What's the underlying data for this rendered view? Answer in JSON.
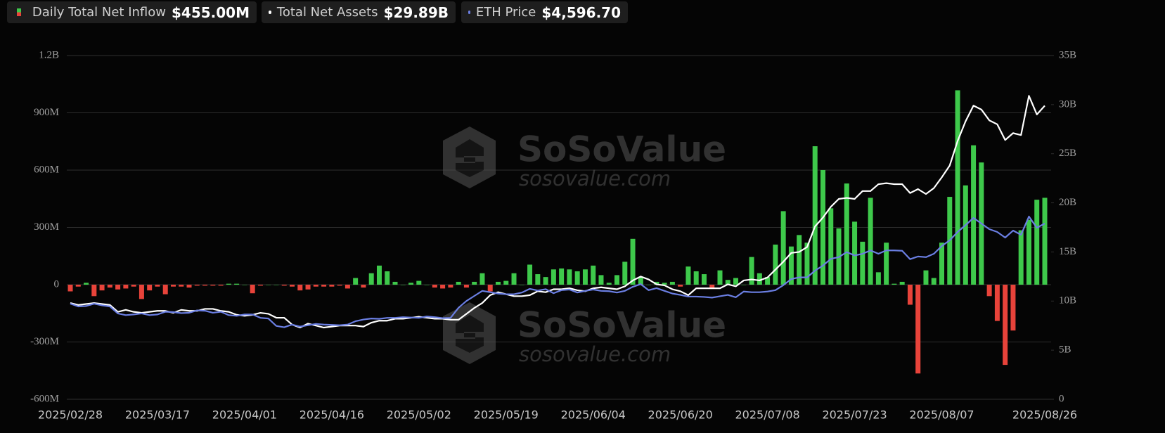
{
  "chart_data": {
    "type": "bar-line",
    "watermark": {
      "name": "SoSoValue",
      "url": "sosovalue.com"
    },
    "categories": [
      "2025/02/28",
      null,
      null,
      null,
      null,
      null,
      null,
      null,
      null,
      null,
      null,
      "2025/03/17",
      null,
      null,
      null,
      null,
      null,
      null,
      null,
      null,
      null,
      null,
      "2025/04/01",
      null,
      null,
      null,
      null,
      null,
      null,
      null,
      null,
      null,
      null,
      "2025/04/16",
      null,
      null,
      null,
      null,
      null,
      null,
      null,
      null,
      null,
      null,
      "2025/05/02",
      null,
      null,
      null,
      null,
      null,
      null,
      null,
      null,
      null,
      null,
      "2025/05/19",
      null,
      null,
      null,
      null,
      null,
      null,
      null,
      null,
      null,
      null,
      "2025/06/04",
      null,
      null,
      null,
      null,
      null,
      null,
      null,
      null,
      null,
      null,
      "2025/06/20",
      null,
      null,
      null,
      null,
      null,
      null,
      null,
      null,
      null,
      null,
      "2025/07/08",
      null,
      null,
      null,
      null,
      null,
      null,
      null,
      null,
      null,
      null,
      "2025/07/23",
      null,
      null,
      null,
      null,
      null,
      null,
      null,
      null,
      null,
      null,
      "2025/08/07",
      null,
      null,
      null,
      null,
      null,
      null,
      null,
      null,
      null,
      null,
      null,
      null,
      "2025/08/26"
    ],
    "series": [
      {
        "name": "Daily Total Net Inflow",
        "legend_label": "$455.00M",
        "type": "bar",
        "axis": "y",
        "color": "#3ec94b",
        "negative_color": "#e8433a",
        "values": [
          -35,
          -10,
          10,
          -60,
          -30,
          -15,
          -25,
          -20,
          -10,
          -75,
          -30,
          -10,
          -50,
          -10,
          -10,
          -15,
          -5,
          -5,
          -5,
          -5,
          5,
          5,
          0,
          -45,
          -5,
          0,
          0,
          -5,
          -10,
          -30,
          -25,
          -10,
          -10,
          -10,
          -5,
          -20,
          35,
          -15,
          60,
          100,
          70,
          15,
          0,
          10,
          20,
          0,
          -15,
          -20,
          -15,
          15,
          -15,
          15,
          60,
          -35,
          15,
          20,
          60,
          0,
          105,
          55,
          40,
          80,
          85,
          80,
          70,
          80,
          100,
          50,
          10,
          50,
          120,
          240,
          40,
          0,
          15,
          10,
          15,
          -10,
          95,
          70,
          55,
          -20,
          75,
          25,
          35,
          0,
          145,
          60,
          40,
          210,
          385,
          200,
          260,
          220,
          725,
          600,
          400,
          295,
          530,
          330,
          225,
          455,
          65,
          220,
          5,
          15,
          -105,
          -465,
          75,
          35,
          220,
          460,
          1018,
          520,
          730,
          640,
          -60,
          -190,
          -420,
          -240,
          285,
          340,
          445,
          455
        ]
      },
      {
        "name": "Total Net Assets",
        "legend_label": "$29.89B",
        "type": "line",
        "axis": "y2",
        "color": "#ffffff",
        "values": [
          9.8,
          9.6,
          9.7,
          9.8,
          9.7,
          9.6,
          8.9,
          9.1,
          8.9,
          8.8,
          8.9,
          9.0,
          9.0,
          8.8,
          9.1,
          9.0,
          9.0,
          9.2,
          9.2,
          9.0,
          8.9,
          8.6,
          8.5,
          8.6,
          8.8,
          8.7,
          8.3,
          8.3,
          7.6,
          7.3,
          7.7,
          7.5,
          7.3,
          7.4,
          7.5,
          7.5,
          7.5,
          7.4,
          7.8,
          8.0,
          8.0,
          8.2,
          8.2,
          8.3,
          8.4,
          8.3,
          8.2,
          8.2,
          8.1,
          8.1,
          8.7,
          9.3,
          9.8,
          10.6,
          10.9,
          10.7,
          10.5,
          10.5,
          10.6,
          11.0,
          10.9,
          11.2,
          11.2,
          11.3,
          11.1,
          11.0,
          11.3,
          11.4,
          11.3,
          11.2,
          11.5,
          12.1,
          12.5,
          12.2,
          11.7,
          11.6,
          11.2,
          11.0,
          10.6,
          11.3,
          11.3,
          11.3,
          11.3,
          11.7,
          11.5,
          12.1,
          12.2,
          12.1,
          12.4,
          13.2,
          14.0,
          14.9,
          15.0,
          15.5,
          17.6,
          18.5,
          19.6,
          20.4,
          20.5,
          20.4,
          21.2,
          21.2,
          21.9,
          22.0,
          21.9,
          21.9,
          21.0,
          21.4,
          20.9,
          21.5,
          22.6,
          23.8,
          26.3,
          28.3,
          29.9,
          29.5,
          28.4,
          28.0,
          26.4,
          27.1,
          26.9,
          30.9,
          29.0,
          29.89
        ]
      },
      {
        "name": "ETH Price",
        "legend_label": "$4,596.70",
        "type": "line",
        "axis": "y3",
        "color": "#6b7fe3",
        "values": [
          2220,
          2137,
          2150,
          2220,
          2170,
          2137,
          1930,
          1880,
          1900,
          1930,
          1880,
          1900,
          1980,
          1970,
          1940,
          1950,
          2020,
          2010,
          1950,
          1980,
          1880,
          1860,
          1900,
          1900,
          1800,
          1780,
          1560,
          1520,
          1600,
          1540,
          1580,
          1620,
          1600,
          1590,
          1580,
          1600,
          1700,
          1750,
          1780,
          1770,
          1800,
          1800,
          1820,
          1810,
          1800,
          1840,
          1820,
          1790,
          1800,
          2100,
          2300,
          2450,
          2600,
          2560,
          2520,
          2500,
          2500,
          2550,
          2660,
          2610,
          2650,
          2530,
          2620,
          2640,
          2550,
          2600,
          2640,
          2600,
          2590,
          2550,
          2600,
          2720,
          2800,
          2620,
          2680,
          2600,
          2520,
          2480,
          2430,
          2430,
          2420,
          2400,
          2440,
          2480,
          2410,
          2580,
          2560,
          2560,
          2580,
          2620,
          2770,
          2950,
          3000,
          3000,
          3200,
          3350,
          3550,
          3600,
          3750,
          3650,
          3700,
          3800,
          3700,
          3800,
          3800,
          3790,
          3540,
          3620,
          3600,
          3700,
          3930,
          4100,
          4347,
          4550,
          4764,
          4597,
          4430,
          4347,
          4180,
          4388,
          4263,
          4805,
          4472,
          4596.7
        ]
      }
    ],
    "ylim": [
      -600,
      1200
    ],
    "yticks": [
      {
        "value": -600,
        "label": "-600M"
      },
      {
        "value": -300,
        "label": "-300M"
      },
      0,
      {
        "value": 300,
        "label": "300M"
      },
      {
        "value": 600,
        "label": "600M"
      },
      {
        "value": 900,
        "label": "900M"
      },
      {
        "value": 1200,
        "label": "1.2B"
      }
    ],
    "y2lim": [
      0,
      35
    ],
    "y2ticks": [
      0,
      {
        "value": 5,
        "label": "5B"
      },
      {
        "value": 10,
        "label": "10B"
      },
      {
        "value": 15,
        "label": "15B"
      },
      {
        "value": 20,
        "label": "20B"
      },
      {
        "value": 25,
        "label": "25B"
      },
      {
        "value": 30,
        "label": "30B"
      },
      {
        "value": 35,
        "label": "35B"
      }
    ],
    "y3lim": [
      -615,
      9580
    ],
    "grid": true
  }
}
